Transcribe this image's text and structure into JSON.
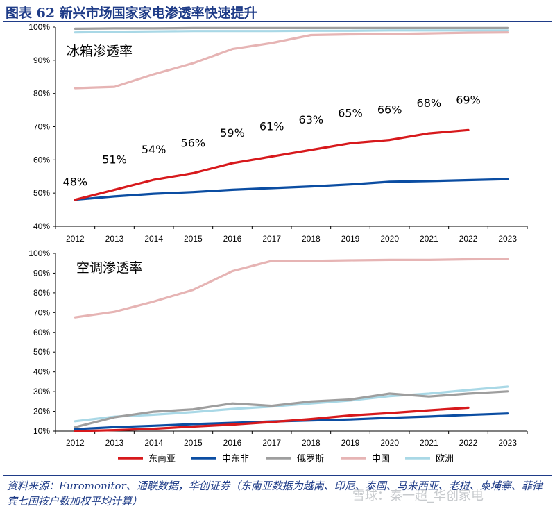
{
  "title": "图表 62  新兴市场国家家电渗透率快速提升",
  "source": "资料来源：Euromonitor、通联数据，华创证券（东南亚数据为越南、印尼、泰国、马来西亚、老挝、柬埔寨、菲律宾七国按户数加权平均计算）",
  "watermark": "雪球：秦一超_华创家电",
  "colors": {
    "东南亚": "#d7191c",
    "中东非": "#0b4da2",
    "俄罗斯": "#9e9e9e",
    "中国": "#e6b4b4",
    "欧洲": "#a9d8e6",
    "title": "#1f3c88"
  },
  "chart_data": [
    {
      "type": "line",
      "panel_label": "冰箱渗透率",
      "x": [
        "2012",
        "2013",
        "2014",
        "2015",
        "2016",
        "2017",
        "2018",
        "2019",
        "2020",
        "2021",
        "2022",
        "2023"
      ],
      "ylim": [
        40,
        100
      ],
      "yticks": [
        "40%",
        "50%",
        "60%",
        "70%",
        "80%",
        "90%",
        "100%"
      ],
      "series": [
        {
          "name": "东南亚",
          "values": [
            48,
            51,
            54,
            56,
            59,
            61,
            63,
            65,
            66,
            68,
            69,
            null
          ]
        },
        {
          "name": "中东非",
          "values": [
            48,
            49,
            49.8,
            50.3,
            51,
            51.5,
            52,
            52.6,
            53.4,
            53.6,
            53.9,
            54.2
          ]
        },
        {
          "name": "俄罗斯",
          "values": [
            99.5,
            99.6,
            99.6,
            99.7,
            99.7,
            99.7,
            99.7,
            99.7,
            99.7,
            99.7,
            99.7,
            99.7
          ]
        },
        {
          "name": "中国",
          "values": [
            81.6,
            82,
            85.8,
            89.1,
            93.4,
            95.2,
            97.6,
            97.8,
            97.9,
            98.1,
            98.3,
            98.4
          ]
        },
        {
          "name": "欧洲",
          "values": [
            98.4,
            98.6,
            98.7,
            98.8,
            98.8,
            98.8,
            98.9,
            98.9,
            99,
            99,
            99,
            99
          ]
        }
      ],
      "data_labels": [
        "48%",
        "51%",
        "54%",
        "56%",
        "59%",
        "61%",
        "63%",
        "65%",
        "66%",
        "68%",
        "69%"
      ]
    },
    {
      "type": "line",
      "panel_label": "空调渗透率",
      "x": [
        "2012",
        "2013",
        "2014",
        "2015",
        "2016",
        "2017",
        "2018",
        "2019",
        "2020",
        "2021",
        "2022",
        "2023"
      ],
      "ylim": [
        10,
        100
      ],
      "yticks": [
        "10%",
        "20%",
        "30%",
        "40%",
        "50%",
        "60%",
        "70%",
        "80%",
        "90%",
        "100%"
      ],
      "series": [
        {
          "name": "东南亚",
          "values": [
            10,
            10.5,
            11.2,
            12.3,
            13.3,
            14.6,
            16.1,
            17.9,
            19.1,
            20.5,
            21.8,
            null
          ]
        },
        {
          "name": "中东非",
          "values": [
            11,
            12,
            12.7,
            13.5,
            14.2,
            14.9,
            15.4,
            15.9,
            16.7,
            17.4,
            18.2,
            18.9
          ]
        },
        {
          "name": "俄罗斯",
          "values": [
            12,
            17,
            19.8,
            21,
            24,
            22.8,
            25,
            26,
            29,
            27.5,
            29,
            30.1
          ]
        },
        {
          "name": "中国",
          "values": [
            67.6,
            70.4,
            75.6,
            81.5,
            91,
            96.2,
            96.2,
            96.5,
            96.7,
            96.7,
            97,
            97.1
          ]
        },
        {
          "name": "欧洲",
          "values": [
            15,
            17.3,
            18.3,
            19.6,
            21.2,
            22.4,
            24,
            25.5,
            27.7,
            29,
            30.8,
            32.5
          ]
        }
      ]
    }
  ],
  "legend": [
    "东南亚",
    "中东非",
    "俄罗斯",
    "中国",
    "欧洲"
  ]
}
